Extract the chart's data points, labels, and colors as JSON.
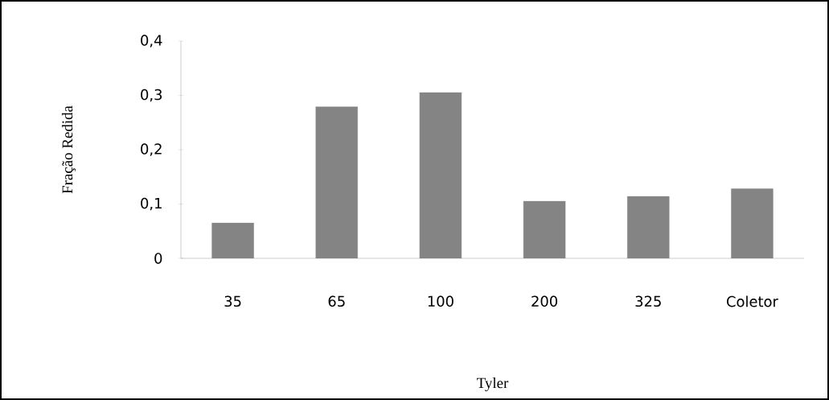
{
  "chart_data": {
    "type": "bar",
    "xlabel": "Tyler",
    "ylabel": "Fração Redida",
    "categories": [
      "35",
      "65",
      "100",
      "200",
      "325",
      "Coletor"
    ],
    "values": [
      0.065,
      0.279,
      0.305,
      0.105,
      0.114,
      0.128
    ],
    "color": "#848484",
    "ylim": [
      0,
      0.4
    ],
    "yticks": [
      0,
      {
        "value": 0.1,
        "label": "0,1"
      },
      {
        "value": 0.2,
        "label": "0,2"
      },
      {
        "value": 0.3,
        "label": "0,3"
      },
      {
        "value": 0.4,
        "label": "0,4"
      }
    ],
    "grid": false
  }
}
